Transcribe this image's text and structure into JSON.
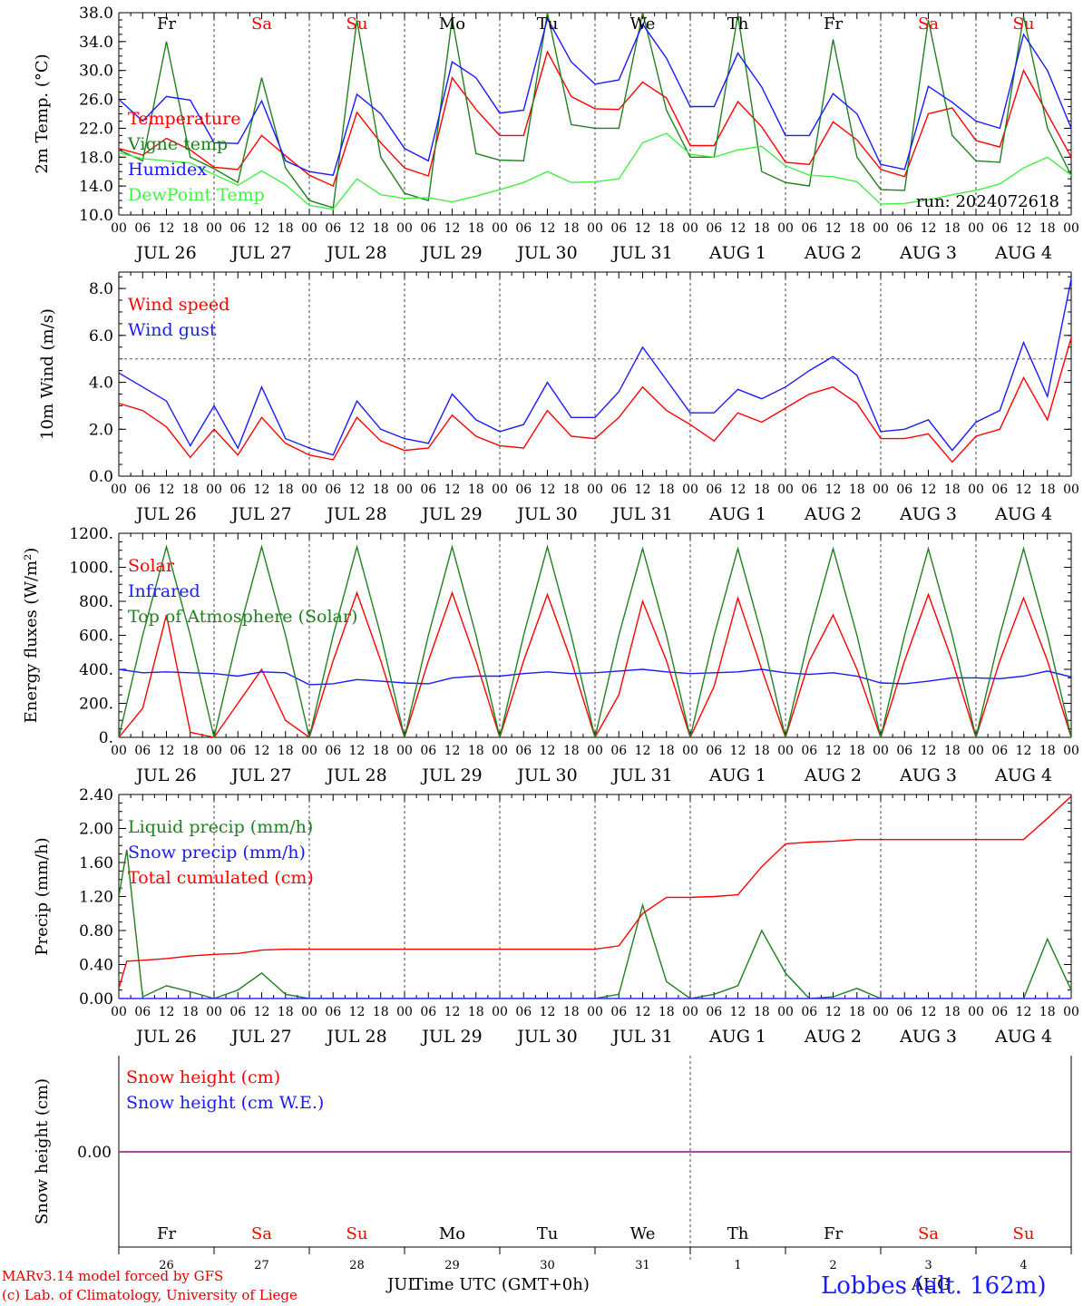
{
  "chart_data": [
    {
      "type": "line",
      "ylabel": "2m Temp. (°C)",
      "ylim": [
        10,
        38
      ],
      "yticks": [
        "10.0",
        "14.0",
        "18.0",
        "22.0",
        "26.0",
        "30.0",
        "34.0",
        "38.0"
      ],
      "x_hours": [
        0,
        6,
        12,
        18,
        24,
        30,
        36,
        42,
        48,
        54,
        60,
        66,
        72,
        78,
        84,
        90,
        96,
        102,
        108,
        114,
        120,
        126,
        132,
        138,
        144,
        150,
        156,
        162,
        168,
        174,
        180,
        186,
        192,
        198,
        204,
        210,
        216,
        222,
        228,
        234,
        240
      ],
      "annotation": "run: 2024072618",
      "legend": [
        "Temperature",
        "Vigne temp",
        "Humidex",
        "DewPoint Temp"
      ],
      "series": [
        {
          "name": "Temperature",
          "color": "#ff0000",
          "values": [
            19.2,
            18.3,
            20.6,
            19.0,
            16.6,
            16.3,
            21.0,
            18.2,
            15.5,
            14.0,
            24.2,
            20.0,
            16.5,
            15.4,
            29.0,
            24.6,
            21.0,
            21.0,
            32.6,
            26.4,
            24.7,
            24.6,
            28.4,
            26.2,
            19.6,
            19.6,
            25.7,
            22.2,
            17.3,
            17.0,
            22.9,
            20.4,
            16.3,
            15.3,
            24.0,
            24.8,
            20.3,
            19.4,
            30.0,
            24.0,
            18.0
          ]
        },
        {
          "name": "Vigne temp",
          "color": "#208020",
          "values": [
            19.0,
            17.5,
            34.0,
            18.0,
            16.4,
            14.5,
            29.0,
            16.5,
            12.0,
            11.0,
            37.0,
            18.0,
            13.0,
            12.0,
            37.2,
            18.5,
            17.6,
            17.5,
            38.0,
            22.5,
            22.0,
            22.0,
            38.0,
            24.5,
            18.0,
            18.0,
            37.7,
            16.0,
            14.5,
            14.0,
            34.3,
            18.0,
            13.5,
            13.4,
            37.0,
            21.0,
            17.5,
            17.3,
            37.5,
            22.0,
            15.5
          ]
        },
        {
          "name": "Humidex",
          "color": "#1a1aff",
          "values": [
            26.0,
            23.0,
            26.4,
            25.9,
            20.0,
            19.9,
            25.8,
            17.5,
            16.0,
            15.5,
            26.7,
            24.0,
            19.2,
            17.5,
            31.2,
            29.0,
            24.1,
            24.5,
            37.2,
            31.2,
            28.1,
            28.7,
            36.4,
            31.7,
            25.0,
            25.0,
            32.4,
            27.7,
            21.0,
            21.0,
            26.8,
            24.0,
            17.0,
            16.3,
            27.8,
            25.6,
            23.0,
            22.0,
            35.0,
            30.0,
            22.0
          ]
        },
        {
          "name": "DewPoint Temp",
          "color": "#44ee44",
          "values": [
            18.6,
            17.8,
            17.5,
            17.2,
            15.6,
            14.1,
            16.1,
            14.2,
            11.3,
            10.8,
            15.0,
            12.8,
            12.3,
            12.4,
            11.8,
            12.6,
            13.5,
            14.5,
            16.0,
            14.5,
            14.6,
            15.0,
            20.0,
            21.3,
            18.4,
            18.0,
            19.0,
            19.5,
            16.8,
            15.5,
            15.3,
            14.6,
            11.5,
            11.6,
            12.1,
            12.8,
            13.4,
            14.3,
            16.5,
            18.0,
            15.5
          ]
        }
      ]
    },
    {
      "type": "line",
      "ylabel": "10m Wind (m/s)",
      "ylim": [
        0,
        8.7
      ],
      "yticks": [
        "0.0",
        "2.0",
        "4.0",
        "6.0",
        "8.0"
      ],
      "reference_line": 5.0,
      "x_hours": [
        0,
        6,
        12,
        18,
        24,
        30,
        36,
        42,
        48,
        54,
        60,
        66,
        72,
        78,
        84,
        90,
        96,
        102,
        108,
        114,
        120,
        126,
        132,
        138,
        144,
        150,
        156,
        162,
        168,
        174,
        180,
        186,
        192,
        198,
        204,
        210,
        216,
        222,
        228,
        234,
        240
      ],
      "legend": [
        "Wind speed",
        "Wind gust"
      ],
      "series": [
        {
          "name": "Wind speed",
          "color": "#ff0000",
          "values": [
            3.1,
            2.8,
            2.1,
            0.8,
            2.0,
            0.9,
            2.5,
            1.4,
            0.9,
            0.7,
            2.5,
            1.5,
            1.1,
            1.2,
            2.6,
            1.7,
            1.3,
            1.2,
            2.8,
            1.7,
            1.6,
            2.5,
            3.8,
            2.8,
            2.2,
            1.5,
            2.7,
            2.3,
            2.9,
            3.5,
            3.8,
            3.1,
            1.6,
            1.6,
            1.8,
            0.6,
            1.7,
            2.0,
            4.2,
            2.4,
            5.9
          ]
        },
        {
          "name": "Wind gust",
          "color": "#1a1aff",
          "values": [
            4.4,
            3.8,
            3.2,
            1.3,
            3.0,
            1.2,
            3.8,
            1.6,
            1.2,
            0.9,
            3.2,
            2.0,
            1.6,
            1.4,
            3.5,
            2.4,
            1.9,
            2.2,
            4.0,
            2.5,
            2.5,
            3.6,
            5.5,
            4.1,
            2.7,
            2.7,
            3.7,
            3.3,
            3.8,
            4.5,
            5.1,
            4.3,
            1.9,
            2.0,
            2.4,
            1.1,
            2.3,
            2.8,
            5.7,
            3.4,
            8.4
          ]
        }
      ]
    },
    {
      "type": "line",
      "ylabel": "Energy fluxes (W/m²)",
      "ylim": [
        0,
        1200
      ],
      "yticks": [
        "0.",
        "200.",
        "400.",
        "600.",
        "800.",
        "1000.",
        "1200."
      ],
      "x_hours": [
        0,
        6,
        12,
        18,
        24,
        30,
        36,
        42,
        48,
        54,
        60,
        66,
        72,
        78,
        84,
        90,
        96,
        102,
        108,
        114,
        120,
        126,
        132,
        138,
        144,
        150,
        156,
        162,
        168,
        174,
        180,
        186,
        192,
        198,
        204,
        210,
        216,
        222,
        228,
        234,
        240
      ],
      "legend": [
        "Solar",
        "Infrared",
        "Top of Atmosphere (Solar)"
      ],
      "series": [
        {
          "name": "Solar",
          "color": "#ff0000",
          "values": [
            0,
            170,
            720,
            30,
            0,
            200,
            400,
            100,
            0,
            450,
            850,
            450,
            0,
            450,
            850,
            450,
            0,
            450,
            840,
            450,
            0,
            250,
            800,
            450,
            0,
            300,
            820,
            400,
            0,
            450,
            720,
            400,
            0,
            450,
            840,
            450,
            0,
            450,
            820,
            450,
            0
          ]
        },
        {
          "name": "Infrared",
          "color": "#1a1aff",
          "values": [
            400,
            380,
            385,
            380,
            375,
            360,
            385,
            380,
            310,
            315,
            340,
            330,
            320,
            315,
            350,
            360,
            360,
            375,
            385,
            375,
            380,
            390,
            400,
            385,
            375,
            380,
            385,
            400,
            380,
            370,
            380,
            360,
            320,
            315,
            330,
            350,
            350,
            345,
            360,
            390,
            355
          ]
        },
        {
          "name": "Top of Atmosphere (Solar)",
          "color": "#208020",
          "values": [
            0,
            600,
            1120,
            600,
            0,
            600,
            1120,
            600,
            0,
            600,
            1120,
            600,
            0,
            600,
            1120,
            600,
            0,
            600,
            1120,
            600,
            0,
            600,
            1110,
            600,
            0,
            600,
            1110,
            600,
            0,
            600,
            1110,
            600,
            0,
            600,
            1110,
            600,
            0,
            600,
            1110,
            600,
            0
          ]
        }
      ]
    },
    {
      "type": "line",
      "ylabel": "Precip (mm/h)",
      "ylim": [
        0,
        2.4
      ],
      "yticks": [
        "0.00",
        "0.40",
        "0.80",
        "1.20",
        "1.60",
        "2.00",
        "2.40"
      ],
      "x_hours": [
        0,
        2,
        6,
        12,
        18,
        24,
        30,
        36,
        42,
        48,
        54,
        60,
        66,
        72,
        78,
        84,
        90,
        96,
        102,
        108,
        114,
        120,
        126,
        132,
        138,
        144,
        150,
        156,
        162,
        168,
        174,
        180,
        186,
        192,
        198,
        204,
        210,
        216,
        222,
        228,
        234,
        240
      ],
      "legend": [
        "Liquid precip (mm/h)",
        "Snow precip (mm/h)",
        "Total cumulated (cm)"
      ],
      "series": [
        {
          "name": "Liquid precip (mm/h)",
          "color": "#208020",
          "values": [
            1.2,
            1.75,
            0.02,
            0.15,
            0.08,
            0.0,
            0.1,
            0.3,
            0.05,
            0.0,
            0.0,
            0.0,
            0.0,
            0.0,
            0.0,
            0.0,
            0.0,
            0.0,
            0.0,
            0.0,
            0.0,
            0.0,
            0.05,
            1.1,
            0.2,
            0.0,
            0.05,
            0.15,
            0.8,
            0.3,
            0.0,
            0.02,
            0.12,
            0.0,
            0.0,
            0.0,
            0.0,
            0.0,
            0.0,
            0.0,
            0.7,
            0.1
          ]
        },
        {
          "name": "Snow precip (mm/h)",
          "color": "#1a1aff",
          "values": [
            0,
            0,
            0,
            0,
            0,
            0,
            0,
            0,
            0,
            0,
            0,
            0,
            0,
            0,
            0,
            0,
            0,
            0,
            0,
            0,
            0,
            0,
            0,
            0,
            0,
            0,
            0,
            0,
            0,
            0,
            0,
            0,
            0,
            0,
            0,
            0,
            0,
            0,
            0,
            0,
            0,
            0
          ]
        },
        {
          "name": "Total cumulated (cm)",
          "color": "#ff0000",
          "values": [
            0.12,
            0.44,
            0.45,
            0.47,
            0.5,
            0.52,
            0.53,
            0.57,
            0.58,
            0.58,
            0.58,
            0.58,
            0.58,
            0.58,
            0.58,
            0.58,
            0.58,
            0.58,
            0.58,
            0.58,
            0.58,
            0.58,
            0.62,
            1.0,
            1.19,
            1.19,
            1.2,
            1.22,
            1.55,
            1.82,
            1.84,
            1.85,
            1.87,
            1.87,
            1.87,
            1.87,
            1.87,
            1.87,
            1.87,
            1.87,
            2.12,
            2.38
          ]
        }
      ]
    },
    {
      "type": "line",
      "ylabel": "Snow height (cm)",
      "yticks": [
        "0.00"
      ],
      "legend": [
        "Snow height (cm)",
        "Snow height (cm W.E.)"
      ],
      "series": [
        {
          "name": "Snow height (cm)",
          "color": "#ff0000",
          "values": [
            0,
            0
          ]
        },
        {
          "name": "Snow height (cm W.E.)",
          "color": "#1a1aff",
          "values": [
            0,
            0
          ]
        }
      ]
    }
  ],
  "axis": {
    "hour_ticks": [
      "00",
      "06",
      "12",
      "18"
    ],
    "end_tick": "00",
    "dates": [
      "JUL 26",
      "JUL 27",
      "JUL 28",
      "JUL 29",
      "JUL 30",
      "JUL 31",
      "AUG  1",
      "AUG  2",
      "AUG  3",
      "AUG  4"
    ],
    "weekdays": [
      {
        "label": "Fr",
        "color": "#000000"
      },
      {
        "label": "Sa",
        "color": "#ff0000"
      },
      {
        "label": "Su",
        "color": "#ff0000"
      },
      {
        "label": "Mo",
        "color": "#000000"
      },
      {
        "label": "Tu",
        "color": "#000000"
      },
      {
        "label": "We",
        "color": "#000000"
      },
      {
        "label": "Th",
        "color": "#000000"
      },
      {
        "label": "Fr",
        "color": "#000000"
      },
      {
        "label": "Sa",
        "color": "#ff0000"
      },
      {
        "label": "Su",
        "color": "#ff0000"
      }
    ],
    "day_numbers": [
      "26",
      "27",
      "28",
      "29",
      "30",
      "31",
      "1",
      "2",
      "3",
      "4"
    ]
  },
  "footer": {
    "model": "MARv3.14 model forced by GFS",
    "lab": "(c) Lab. of Climatology, University of Liege",
    "month_left": "JUL",
    "xlabel": "Time UTC (GMT+0h)",
    "month_right": "AUG",
    "station": "Lobbes (alt. 162m)"
  }
}
